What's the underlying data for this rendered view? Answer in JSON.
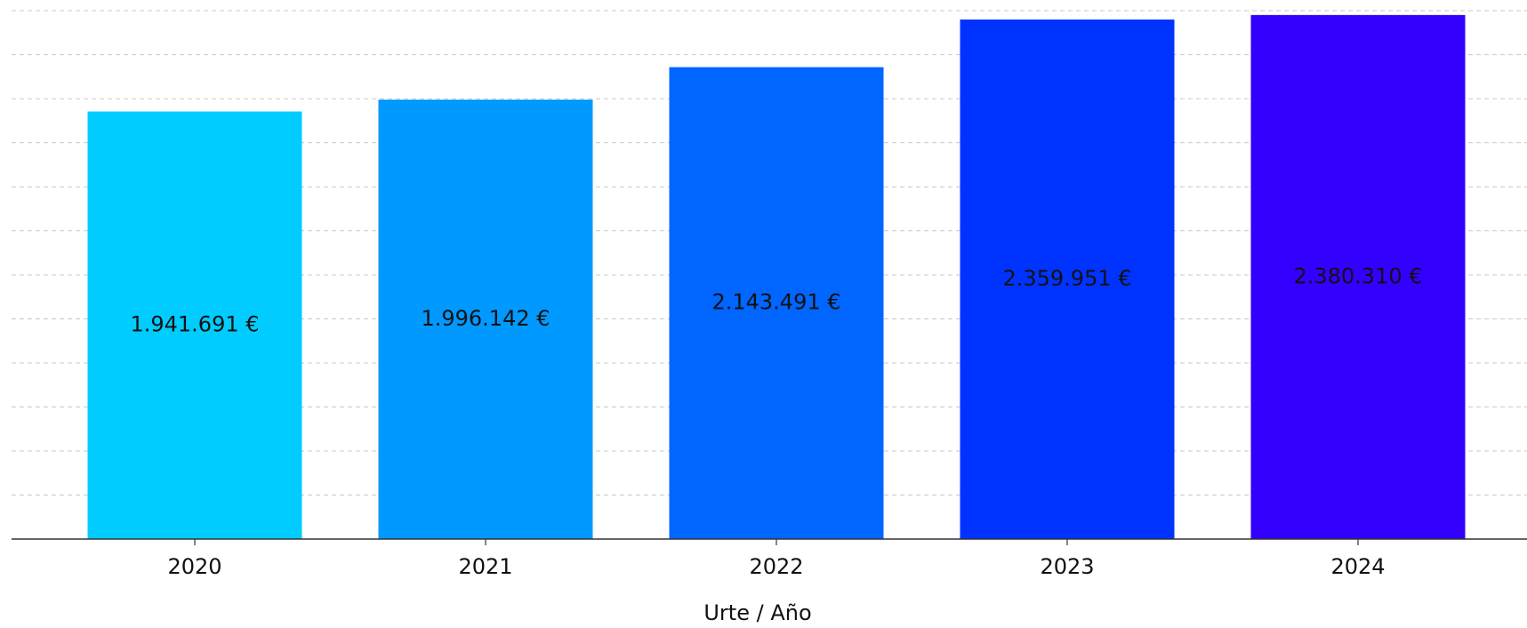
{
  "chart_data": {
    "type": "bar",
    "x_label": "Urte / Año",
    "categories": [
      "2020",
      "2021",
      "2022",
      "2023",
      "2024"
    ],
    "values": [
      1941691,
      1996142,
      2143491,
      2359951,
      2380310
    ],
    "value_labels": [
      "1.941.691 €",
      "1.996.142 €",
      "2.143.491 €",
      "2.359.951 €",
      "2.380.310 €"
    ],
    "colors": [
      "#00ccff",
      "#0099ff",
      "#0066ff",
      "#0033ff",
      "#3300ff"
    ],
    "ylim": [
      0,
      2400000
    ],
    "yticks": [
      0,
      200000,
      400000,
      600000,
      800000,
      1000000,
      1200000,
      1400000,
      1600000,
      1800000,
      2000000,
      2200000,
      2400000
    ],
    "grid": true
  }
}
